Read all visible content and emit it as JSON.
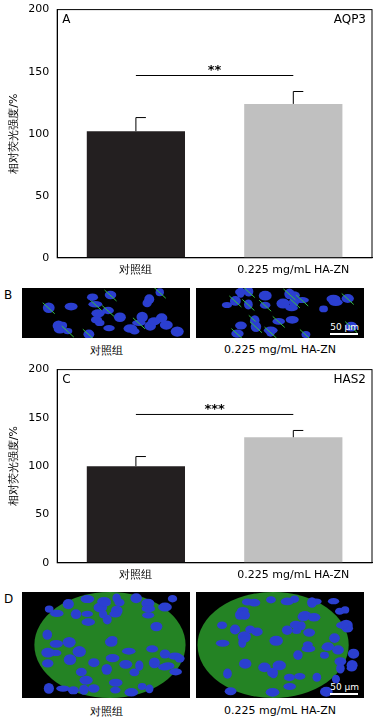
{
  "chart_data": [
    {
      "type": "bar",
      "panel": "A",
      "title": "AQP3",
      "y_label": "相对荧光强度/%",
      "categories": [
        "对照组",
        "0.225 mg/mL HA-ZN"
      ],
      "values": [
        102,
        124
      ],
      "errors": [
        11,
        10
      ],
      "colors": [
        "#231f20",
        "#c0c0c0"
      ],
      "ylim": [
        0,
        200
      ],
      "yticks": [
        0,
        50,
        100,
        150,
        200
      ],
      "grid": false,
      "annotation": "**"
    },
    {
      "type": "bar",
      "panel": "C",
      "title": "HAS2",
      "y_label": "相对荧光强度/%",
      "categories": [
        "对照组",
        "0.225 mg/mL HA-ZN"
      ],
      "values": [
        100,
        130
      ],
      "errors": [
        10,
        7
      ],
      "colors": [
        "#231f20",
        "#c0c0c0"
      ],
      "ylim": [
        0,
        200
      ],
      "yticks": [
        0,
        50,
        100,
        150,
        200
      ],
      "grid": false,
      "annotation": "***"
    }
  ],
  "image_panels": [
    {
      "panel": "B",
      "captions": [
        "对照组",
        "0.225 mg/mL HA-ZN"
      ],
      "scale_bar": "50 μm"
    },
    {
      "panel": "D",
      "captions": [
        "对照组",
        "0.225 mg/mL HA-ZN"
      ],
      "scale_bar": "50 μm"
    }
  ]
}
